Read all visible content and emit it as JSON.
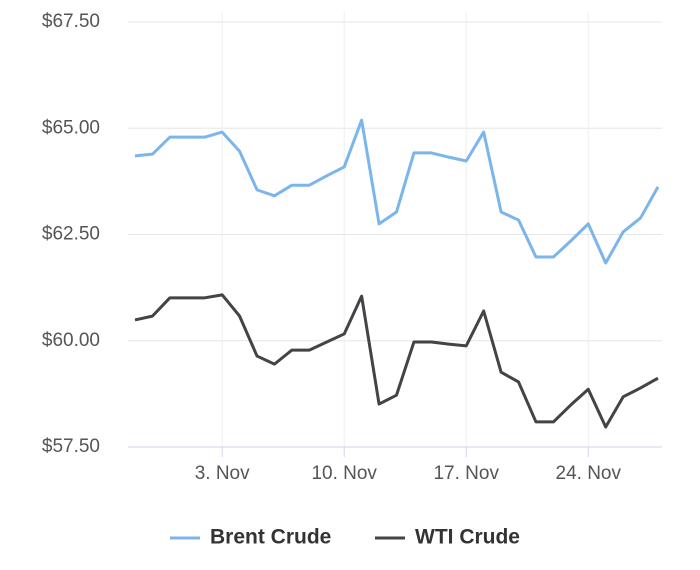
{
  "chart_data": {
    "type": "line",
    "categories": [
      null,
      null,
      null,
      null,
      null,
      "3. Nov",
      null,
      null,
      null,
      null,
      null,
      null,
      "10. Nov",
      null,
      null,
      null,
      null,
      null,
      null,
      "17. Nov",
      null,
      null,
      null,
      null,
      null,
      null,
      "24. Nov",
      null,
      null,
      null,
      null
    ],
    "series": [
      {
        "name": "Brent Crude",
        "color": "#7cb5ec",
        "values": [
          64.35,
          64.39,
          64.79,
          64.79,
          64.79,
          64.91,
          64.46,
          63.55,
          63.41,
          63.66,
          63.66,
          63.88,
          64.09,
          65.19,
          62.75,
          63.03,
          64.42,
          64.42,
          64.32,
          64.23,
          64.91,
          63.03,
          62.84,
          61.97,
          61.97,
          62.35,
          62.75,
          61.83,
          62.56,
          62.89,
          63.62
        ]
      },
      {
        "name": "WTI Crude",
        "color": "#434348",
        "values": [
          60.49,
          60.58,
          61.01,
          61.01,
          61.01,
          61.08,
          60.58,
          59.64,
          59.45,
          59.78,
          59.78,
          59.97,
          60.16,
          61.05,
          58.51,
          58.72,
          59.97,
          59.97,
          59.92,
          59.88,
          60.7,
          59.26,
          59.03,
          58.09,
          58.09,
          58.49,
          58.86,
          57.97,
          58.68,
          58.89,
          59.12
        ]
      }
    ],
    "ylim": [
      57.5,
      67.5
    ],
    "yticks": [
      {
        "value": 57.5,
        "label": "$57.50"
      },
      {
        "value": 60,
        "label": "$60.00"
      },
      {
        "value": 62.5,
        "label": "$62.50"
      },
      {
        "value": 65,
        "label": "$65.00"
      },
      {
        "value": 67.5,
        "label": "$67.50"
      }
    ],
    "grid": true,
    "legend": "bottom"
  }
}
